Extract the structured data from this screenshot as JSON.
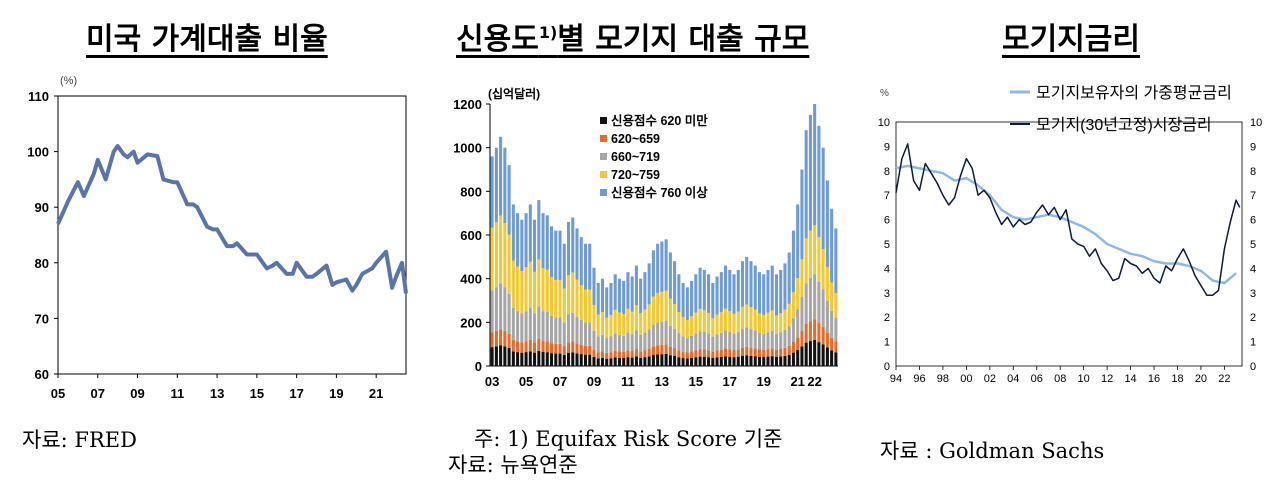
{
  "panels": {
    "p1": {
      "title": "미국 가계대출 비율",
      "source": "자료: FRED"
    },
    "p2": {
      "title_main": "신용도",
      "title_sup": "1)",
      "title_rest": "별 모기지 대출 규모",
      "note": "주: 1) Equifax Risk Score 기준",
      "source": "자료: 뉴욕연준"
    },
    "p3": {
      "title": "모기지금리",
      "source": "자료 : Goldman Sachs"
    }
  },
  "chart_data": [
    {
      "type": "line",
      "unit": "(%)",
      "ylim": [
        60,
        110
      ],
      "yticks": [
        60,
        70,
        80,
        90,
        100,
        110
      ],
      "xlim": [
        2005,
        2022.5
      ],
      "xticks": [
        2005,
        2007,
        2009,
        2011,
        2013,
        2015,
        2017,
        2019,
        2021
      ],
      "xtick_labels": [
        "05",
        "07",
        "09",
        "11",
        "13",
        "15",
        "17",
        "19",
        "21"
      ],
      "color": "#5b74a8",
      "series": [
        {
          "x": [
            2005,
            2005.5,
            2006,
            2006.3,
            2006.8,
            2007,
            2007.4,
            2007.8,
            2008,
            2008.3,
            2008.5,
            2008.8,
            2009,
            2009.5,
            2009.8,
            2010,
            2010.3,
            2010.8,
            2011,
            2011.5,
            2011.8,
            2012,
            2012.5,
            2012.8,
            2013,
            2013.5,
            2013.8,
            2014,
            2014.5,
            2014.8,
            2015,
            2015.5,
            2015.8,
            2016,
            2016.5,
            2016.8,
            2017,
            2017.5,
            2017.8,
            2018,
            2018.5,
            2018.8,
            2019,
            2019.5,
            2019.8,
            2020,
            2020.3,
            2020.8,
            2021,
            2021.5,
            2021.8,
            2022,
            2022.3,
            2022.5
          ],
          "y": [
            87,
            91,
            94.5,
            92,
            96,
            98.5,
            95,
            100,
            101,
            99.5,
            99,
            100,
            98,
            99.5,
            99.3,
            99.2,
            95,
            94.5,
            94.5,
            90.5,
            90.5,
            90,
            86.5,
            86,
            86,
            83,
            83,
            83.5,
            81.5,
            81.5,
            81.5,
            79,
            79.5,
            80,
            78,
            78,
            80,
            77.5,
            77.5,
            78,
            79.5,
            76,
            76.5,
            77,
            75,
            76,
            78,
            79,
            80,
            82,
            75.5,
            77.5,
            80,
            74.5
          ]
        }
      ]
    },
    {
      "type": "bar",
      "stacked": true,
      "unit": "(십억달러)",
      "ylim": [
        0,
        1200
      ],
      "yticks": [
        0,
        200,
        400,
        600,
        800,
        1000,
        1200
      ],
      "xtick_labels": [
        "03",
        "05",
        "07",
        "09",
        "11",
        "13",
        "15",
        "17",
        "19",
        "21",
        "22"
      ],
      "xtick_positions": [
        2003,
        2005,
        2007,
        2009,
        2011,
        2013,
        2015,
        2017,
        2019,
        2021,
        2022
      ],
      "start": 2003,
      "periods_per_year": 4,
      "legend": [
        "신용점수 620 미만",
        "620~659",
        "660~719",
        "720~759",
        "신용점수 760 이상"
      ],
      "colors": [
        "#111111",
        "#e36c2d",
        "#a6a6a6",
        "#f0c935",
        "#6e9bd1"
      ],
      "totals": [
        960,
        1000,
        1050,
        1000,
        920,
        740,
        700,
        670,
        700,
        740,
        670,
        760,
        700,
        690,
        640,
        620,
        620,
        560,
        660,
        680,
        630,
        590,
        560,
        560,
        450,
        380,
        400,
        360,
        380,
        420,
        400,
        390,
        430,
        410,
        460,
        400,
        430,
        470,
        530,
        560,
        570,
        580,
        520,
        480,
        420,
        380,
        360,
        390,
        420,
        450,
        440,
        420,
        380,
        410,
        430,
        460,
        440,
        420,
        440,
        480,
        500,
        480,
        460,
        430,
        420,
        440,
        460,
        420,
        440,
        470,
        520,
        620,
        740,
        900,
        1080,
        1150,
        1200,
        1100,
        1000,
        850,
        720,
        630
      ],
      "series": [
        {
          "name": "신용점수 620 미만",
          "shares": [
            0.09,
            0.1
          ]
        },
        {
          "name": "620~659",
          "shares": [
            0.07,
            0.08
          ]
        },
        {
          "name": "660~719",
          "shares": [
            0.2,
            0.17
          ]
        },
        {
          "name": "720~759",
          "shares": [
            0.3,
            0.18
          ]
        },
        {
          "name": "신용점수 760 이상",
          "shares": [
            0.34,
            0.47
          ]
        }
      ]
    },
    {
      "type": "line",
      "unit": "%",
      "ylim": [
        0,
        10
      ],
      "yticks": [
        0,
        1,
        2,
        3,
        4,
        5,
        6,
        7,
        8,
        9,
        10
      ],
      "xlim": [
        1994,
        2023.5
      ],
      "xticks": [
        1994,
        1996,
        1998,
        2000,
        2002,
        2004,
        2006,
        2008,
        2010,
        2012,
        2014,
        2016,
        2018,
        2020,
        2022
      ],
      "xtick_labels": [
        "94",
        "96",
        "98",
        "00",
        "02",
        "04",
        "06",
        "08",
        "10",
        "12",
        "14",
        "16",
        "18",
        "20",
        "22"
      ],
      "legend": "top-right",
      "series": [
        {
          "name": "모기지보유자의 가중평균금리",
          "color": "#8fb8e6",
          "x": [
            1994,
            1995,
            1996,
            1997,
            1998,
            1999,
            2000,
            2001,
            2002,
            2003,
            2004,
            2005,
            2006,
            2007,
            2008,
            2009,
            2010,
            2011,
            2012,
            2013,
            2014,
            2015,
            2016,
            2017,
            2018,
            2019,
            2020,
            2021,
            2022,
            2023
          ],
          "y": [
            8.1,
            8.2,
            8.1,
            8.0,
            7.9,
            7.6,
            7.7,
            7.4,
            7.0,
            6.4,
            6.1,
            6.0,
            6.1,
            6.2,
            6.1,
            5.9,
            5.7,
            5.4,
            5.0,
            4.8,
            4.6,
            4.5,
            4.3,
            4.2,
            4.2,
            4.1,
            3.9,
            3.5,
            3.4,
            3.8
          ]
        },
        {
          "name": "모기지(30년고정)시장금리",
          "color": "#0d1b36",
          "x": [
            1994,
            1994.5,
            1995,
            1995.5,
            1996,
            1996.5,
            1997,
            1997.5,
            1998,
            1998.5,
            1999,
            1999.5,
            2000,
            2000.5,
            2001,
            2001.5,
            2002,
            2002.5,
            2003,
            2003.5,
            2004,
            2004.5,
            2005,
            2005.5,
            2006,
            2006.5,
            2007,
            2007.5,
            2008,
            2008.5,
            2009,
            2009.5,
            2010,
            2010.5,
            2011,
            2011.5,
            2012,
            2012.5,
            2013,
            2013.5,
            2014,
            2014.5,
            2015,
            2015.5,
            2016,
            2016.5,
            2017,
            2017.5,
            2018,
            2018.5,
            2019,
            2019.5,
            2020,
            2020.5,
            2021,
            2021.5,
            2022,
            2022.5,
            2023,
            2023.3
          ],
          "y": [
            7.1,
            8.5,
            9.1,
            7.6,
            7.2,
            8.3,
            7.9,
            7.5,
            7.0,
            6.6,
            6.9,
            7.8,
            8.5,
            8.1,
            7.0,
            7.2,
            6.9,
            6.3,
            5.8,
            6.1,
            5.7,
            6.0,
            5.8,
            5.9,
            6.3,
            6.6,
            6.2,
            6.5,
            6.0,
            6.4,
            5.2,
            5.0,
            4.9,
            4.5,
            4.8,
            4.2,
            3.9,
            3.5,
            3.6,
            4.4,
            4.2,
            4.1,
            3.8,
            4.0,
            3.6,
            3.4,
            4.1,
            3.9,
            4.4,
            4.8,
            4.3,
            3.7,
            3.3,
            2.9,
            2.9,
            3.1,
            4.8,
            5.9,
            6.8,
            6.5
          ]
        }
      ]
    }
  ]
}
